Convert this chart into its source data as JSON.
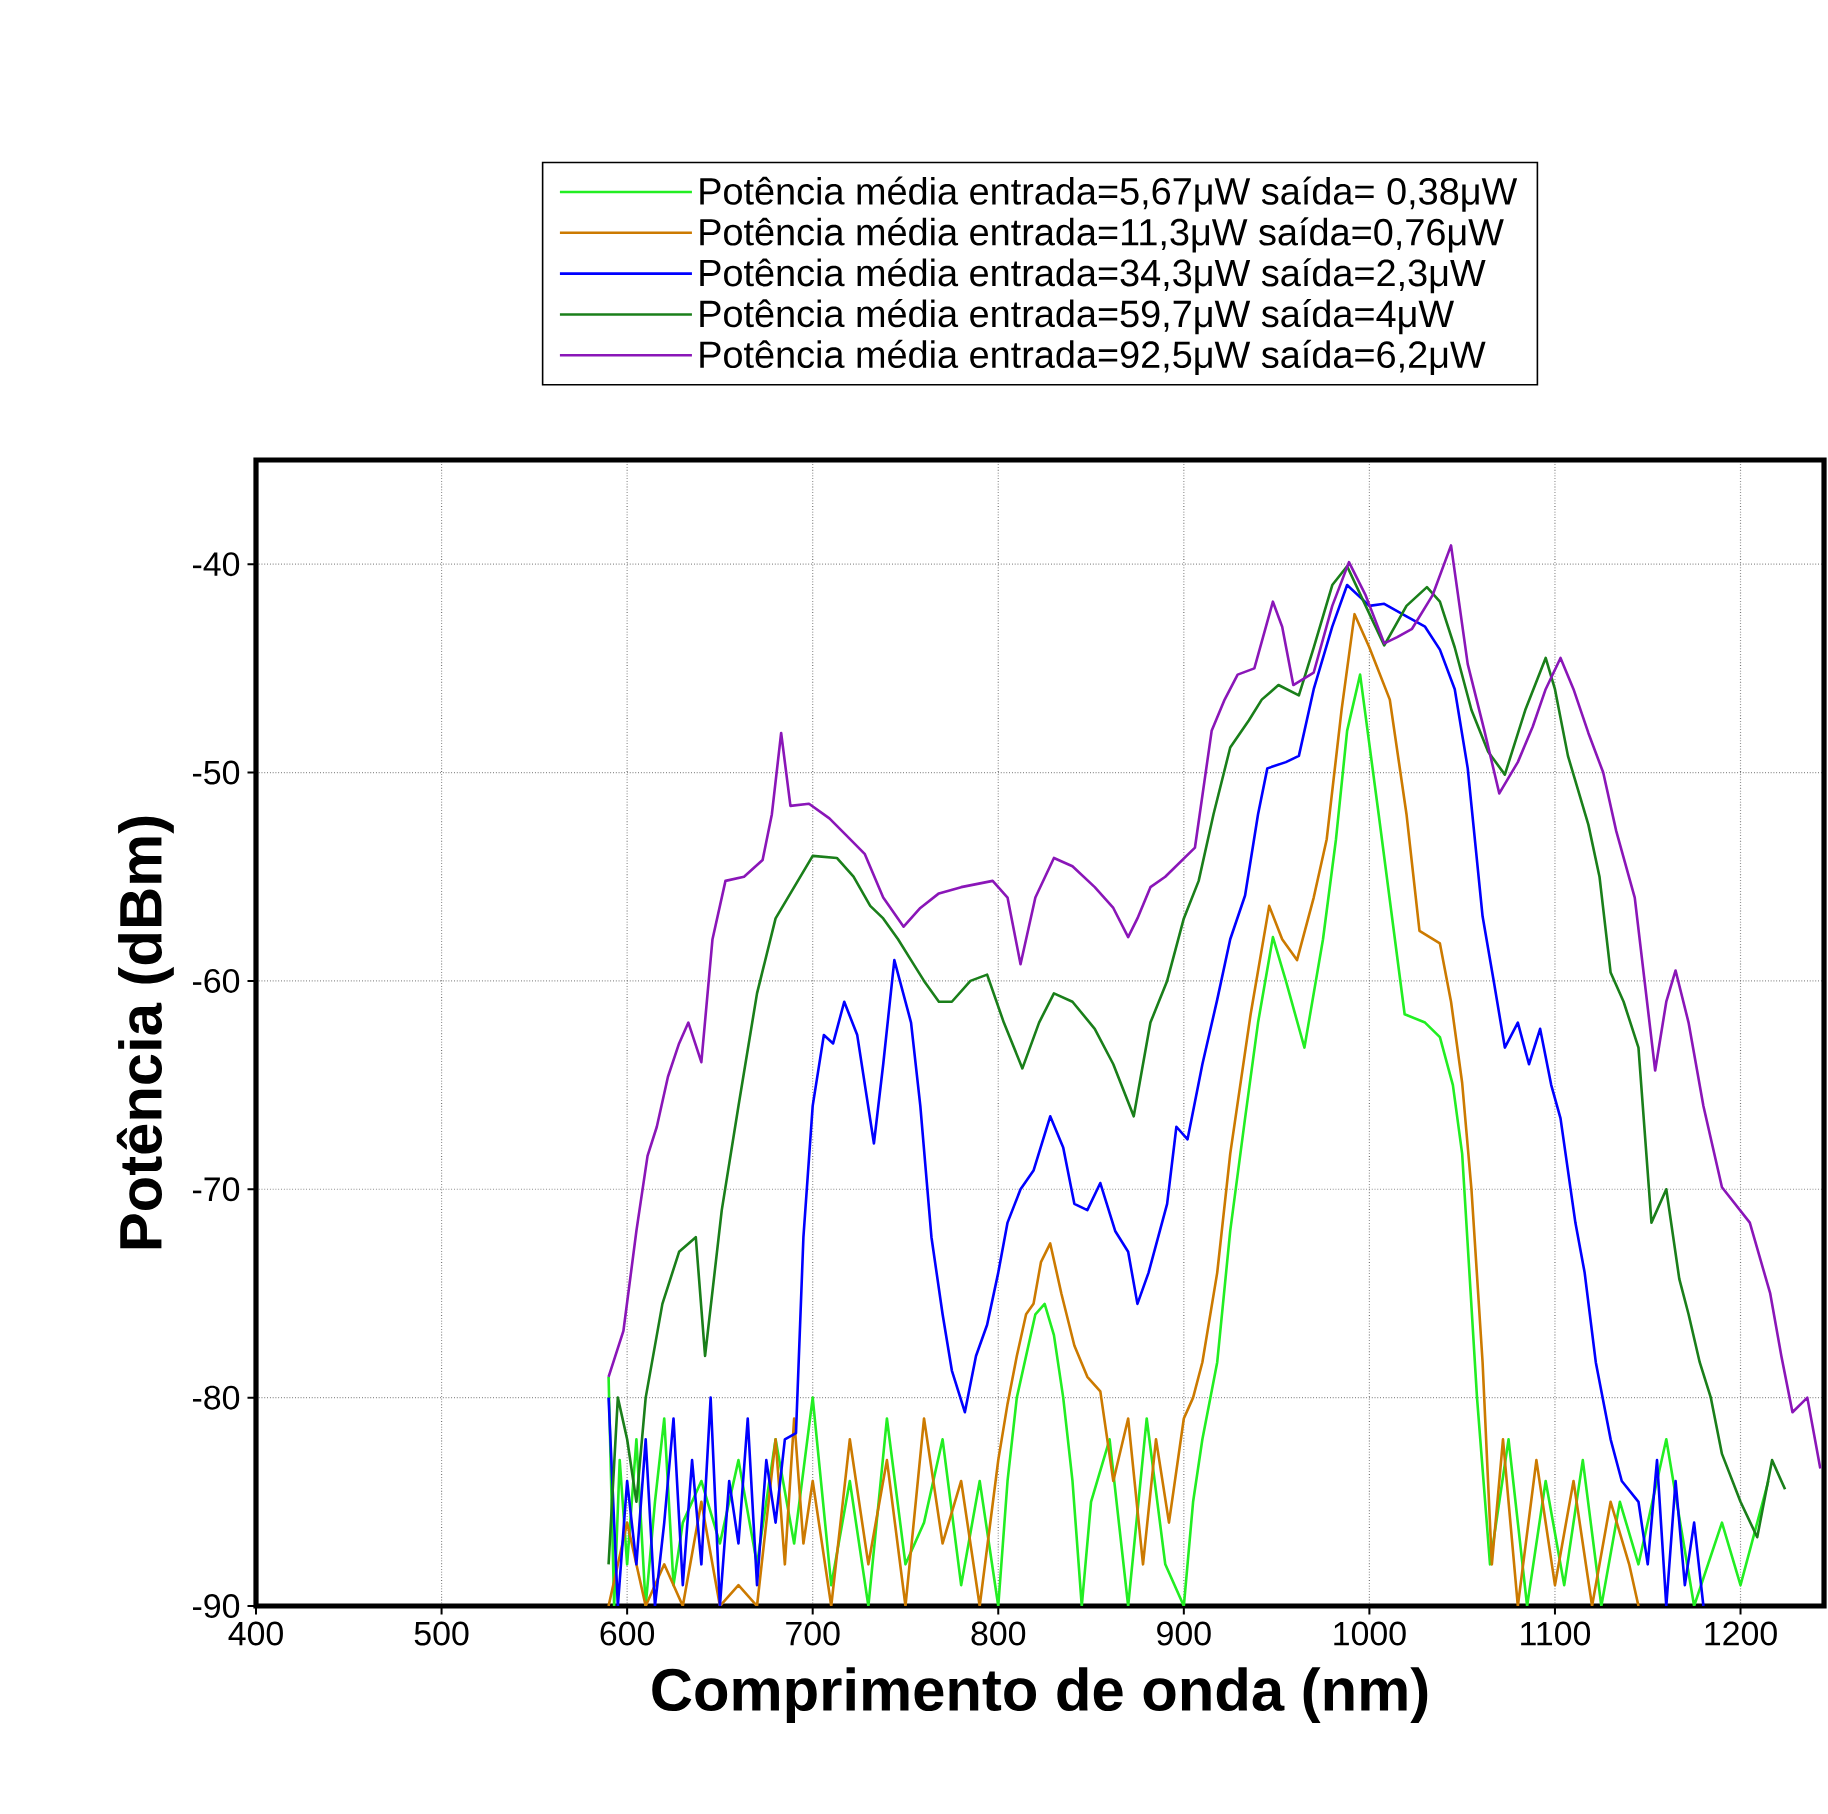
{
  "chart_data": {
    "type": "line",
    "xlabel": "Comprimento de onda (nm)",
    "ylabel": "Potência (dBm)",
    "xlim": [
      400,
      1245
    ],
    "ylim": [
      -90,
      -35
    ],
    "xticks": [
      400,
      500,
      600,
      700,
      800,
      900,
      1000,
      1100,
      1200
    ],
    "yticks": [
      -90,
      -80,
      -70,
      -60,
      -50,
      -40
    ],
    "grid": true,
    "legend": "top",
    "marker": "none",
    "line_style": "solid",
    "series": [
      {
        "name": "Potência média entrada=5,67μW saída= 0,38μW",
        "color": "#22ee22",
        "x": [
          590,
          593,
          596,
          600,
          605,
          610,
          615,
          620,
          625,
          630,
          640,
          650,
          660,
          670,
          680,
          690,
          700,
          710,
          720,
          730,
          740,
          750,
          760,
          770,
          780,
          790,
          800,
          805,
          810,
          815,
          820,
          825,
          830,
          835,
          840,
          845,
          850,
          860,
          870,
          880,
          890,
          900,
          905,
          910,
          918,
          925,
          933,
          940,
          948,
          955,
          965,
          975,
          982,
          988,
          995,
          1005,
          1019,
          1030,
          1038,
          1045,
          1050,
          1058,
          1065,
          1075,
          1085,
          1095,
          1105,
          1115,
          1125,
          1135,
          1145,
          1160,
          1175,
          1190,
          1200,
          1215
        ],
        "values": [
          -79,
          -90,
          -83,
          -88,
          -82,
          -90,
          -85,
          -81,
          -89,
          -86,
          -84,
          -87,
          -83,
          -88,
          -82,
          -87,
          -80,
          -89,
          -84,
          -90,
          -81,
          -88,
          -86,
          -82,
          -89,
          -84,
          -90,
          -84,
          -80,
          -78,
          -76,
          -75.5,
          -77,
          -80,
          -84,
          -90,
          -85,
          -82,
          -90,
          -81,
          -88,
          -90,
          -85,
          -82,
          -78.3,
          -72,
          -66.6,
          -62,
          -57.9,
          -60,
          -63.2,
          -58,
          -53.2,
          -48,
          -45.3,
          -52,
          -61.6,
          -62,
          -62.7,
          -65,
          -68.3,
          -80,
          -88,
          -82,
          -90,
          -84,
          -89,
          -83,
          -90,
          -85,
          -88,
          -82,
          -90,
          -86,
          -89,
          -84
        ]
      },
      {
        "name": "Potência média entrada=11,3μW saída=0,76μW",
        "color": "#cc7a00",
        "x": [
          590,
          600,
          610,
          620,
          630,
          640,
          650,
          660,
          670,
          680,
          685,
          690,
          695,
          700,
          710,
          720,
          730,
          740,
          750,
          760,
          770,
          780,
          790,
          800,
          805,
          810,
          815,
          819,
          823,
          828,
          834,
          841,
          848,
          855,
          862,
          870,
          878,
          885,
          892,
          900,
          905,
          910,
          918,
          925,
          936,
          946,
          953,
          961,
          970,
          977,
          985,
          992,
          1000,
          1011,
          1020,
          1027,
          1038,
          1044,
          1050,
          1055,
          1061,
          1066,
          1072,
          1080,
          1090,
          1100,
          1110,
          1120,
          1130,
          1140,
          1145
        ],
        "values": [
          -90,
          -86,
          -90,
          -88,
          -90,
          -85,
          -90,
          -89,
          -90,
          -82,
          -88,
          -81,
          -87,
          -84,
          -90,
          -82,
          -88,
          -83,
          -90,
          -81,
          -87,
          -84,
          -90,
          -83,
          -80.3,
          -78,
          -76,
          -75.5,
          -73.5,
          -72.6,
          -75,
          -77.5,
          -79,
          -79.7,
          -84,
          -81,
          -88,
          -82,
          -86,
          -81,
          -80,
          -78.3,
          -74,
          -68.3,
          -61.6,
          -56.4,
          -58,
          -59,
          -56,
          -53.2,
          -47,
          -42.4,
          -44,
          -46.5,
          -52,
          -57.6,
          -58.2,
          -61,
          -64.9,
          -70,
          -78.3,
          -88,
          -82,
          -90,
          -83,
          -89,
          -84,
          -90,
          -85,
          -88,
          -90
        ]
      },
      {
        "name": "Potência média entrada=34,3μW saída=2,3μW",
        "color": "#0000ff",
        "x": [
          590,
          595,
          600,
          605,
          610,
          615,
          620,
          625,
          630,
          635,
          640,
          645,
          650,
          655,
          660,
          665,
          670,
          675,
          680,
          685,
          691,
          695,
          700,
          706,
          711,
          717,
          724,
          733,
          738,
          744,
          753,
          758,
          764,
          770,
          775,
          782,
          788,
          794,
          800,
          805,
          812,
          819,
          828,
          835,
          841,
          848,
          855,
          863,
          870,
          875,
          881,
          891,
          896,
          902,
          910,
          918,
          925,
          933,
          940,
          945,
          955,
          962,
          970,
          980,
          988,
          1000,
          1008,
          1020,
          1030,
          1038,
          1046,
          1053,
          1061,
          1067,
          1073,
          1080,
          1086,
          1092,
          1098,
          1103,
          1111,
          1116,
          1122,
          1130,
          1136,
          1145,
          1150,
          1155,
          1160,
          1165,
          1170,
          1175,
          1180
        ],
        "values": [
          -80,
          -90,
          -84,
          -88,
          -82,
          -90,
          -86,
          -81,
          -89,
          -83,
          -88,
          -80,
          -90,
          -84,
          -87,
          -81,
          -89,
          -83,
          -86,
          -82,
          -81.7,
          -72.3,
          -66,
          -62.6,
          -63,
          -61,
          -62.6,
          -67.8,
          -64,
          -59,
          -62,
          -66,
          -72.3,
          -76,
          -78.7,
          -80.7,
          -78,
          -76.5,
          -74,
          -71.6,
          -70,
          -69.1,
          -66.5,
          -68,
          -70.7,
          -71,
          -69.7,
          -72,
          -73,
          -75.5,
          -74,
          -70.7,
          -67,
          -67.6,
          -64,
          -60.9,
          -58,
          -55.9,
          -52,
          -49.8,
          -49.5,
          -49.2,
          -46,
          -43,
          -41,
          -42,
          -41.9,
          -42.5,
          -43,
          -44.1,
          -46,
          -49.8,
          -56.9,
          -60,
          -63.2,
          -62,
          -64,
          -62.3,
          -65,
          -66.6,
          -71.6,
          -74,
          -78.3,
          -82,
          -84,
          -85,
          -88,
          -83,
          -90,
          -84,
          -89,
          -86,
          -90
        ]
      },
      {
        "name": "Potência média entrada=59,7μW saída=4μW",
        "color": "#1a7f1a",
        "x": [
          590,
          595,
          600,
          605,
          610,
          619,
          628,
          637,
          642,
          651,
          660,
          670,
          680,
          688,
          700,
          713,
          722,
          731,
          738,
          746,
          753,
          760,
          768,
          775,
          785,
          794,
          803,
          813,
          822,
          830,
          840,
          852,
          862,
          873,
          882,
          891,
          900,
          908,
          916,
          925,
          935,
          942,
          951,
          962,
          970,
          980,
          988,
          998,
          1008,
          1020,
          1031,
          1038,
          1046,
          1055,
          1064,
          1073,
          1084,
          1095,
          1100,
          1107,
          1118,
          1124,
          1130,
          1137,
          1145,
          1152,
          1160,
          1167,
          1172,
          1178,
          1184,
          1190,
          1200,
          1209,
          1217,
          1224
        ],
        "values": [
          -88,
          -80,
          -82,
          -85,
          -80,
          -75.5,
          -73,
          -72.3,
          -78,
          -71,
          -66,
          -60.6,
          -57,
          -55.8,
          -54,
          -54.1,
          -55,
          -56.4,
          -57,
          -58,
          -59,
          -60,
          -61,
          -61,
          -60,
          -59.7,
          -62,
          -64.2,
          -62,
          -60.6,
          -61,
          -62.3,
          -64,
          -66.5,
          -62,
          -60,
          -57,
          -55.2,
          -52,
          -48.8,
          -47.5,
          -46.5,
          -45.8,
          -46.3,
          -44,
          -41,
          -40.1,
          -42,
          -43.9,
          -42,
          -41.1,
          -41.8,
          -44,
          -47,
          -49,
          -50.1,
          -47,
          -44.5,
          -46,
          -49.2,
          -52.5,
          -55,
          -59.6,
          -61,
          -63.2,
          -71.6,
          -70,
          -74.3,
          -76,
          -78.3,
          -80,
          -82.7,
          -85,
          -86.7,
          -83,
          -84.4
        ]
      },
      {
        "name": "Potência média entrada=92,5μW saída=6,2μW",
        "color": "#8a16b8",
        "x": [
          590,
          598,
          605,
          611,
          616,
          622,
          628,
          633,
          640,
          646,
          653,
          663,
          673,
          678,
          683,
          688,
          698,
          709,
          718,
          728,
          738,
          749,
          758,
          768,
          780,
          797,
          805,
          812,
          820,
          830,
          840,
          852,
          862,
          870,
          875,
          882,
          890,
          906,
          915,
          922,
          929,
          938,
          948,
          953,
          959,
          970,
          980,
          989,
          998,
          1008,
          1015,
          1023,
          1034,
          1044,
          1053,
          1062,
          1070,
          1080,
          1088,
          1095,
          1103,
          1110,
          1118,
          1126,
          1133,
          1143,
          1154,
          1160,
          1165,
          1172,
          1180,
          1190,
          1205,
          1216,
          1222,
          1228,
          1236,
          1243
        ],
        "values": [
          -79,
          -76.8,
          -72,
          -68.4,
          -67,
          -64.6,
          -63,
          -62,
          -63.9,
          -58,
          -55.2,
          -55,
          -54.2,
          -52,
          -48.1,
          -51.6,
          -51.5,
          -52.2,
          -53,
          -53.9,
          -56,
          -57.4,
          -56.5,
          -55.8,
          -55.5,
          -55.2,
          -56,
          -59.2,
          -56,
          -54.1,
          -54.5,
          -55.5,
          -56.5,
          -57.9,
          -57,
          -55.5,
          -55,
          -53.6,
          -48,
          -46.5,
          -45.3,
          -45,
          -41.8,
          -43,
          -45.8,
          -45.2,
          -42,
          -39.9,
          -41.5,
          -43.8,
          -43.5,
          -43.1,
          -41.5,
          -39.1,
          -44.8,
          -48,
          -51,
          -49.5,
          -47.8,
          -46,
          -44.5,
          -46,
          -48.1,
          -50,
          -52.8,
          -56,
          -64.3,
          -61,
          -59.5,
          -62,
          -66,
          -69.9,
          -71.6,
          -75,
          -78,
          -80.7,
          -80,
          -83.4
        ]
      }
    ]
  }
}
